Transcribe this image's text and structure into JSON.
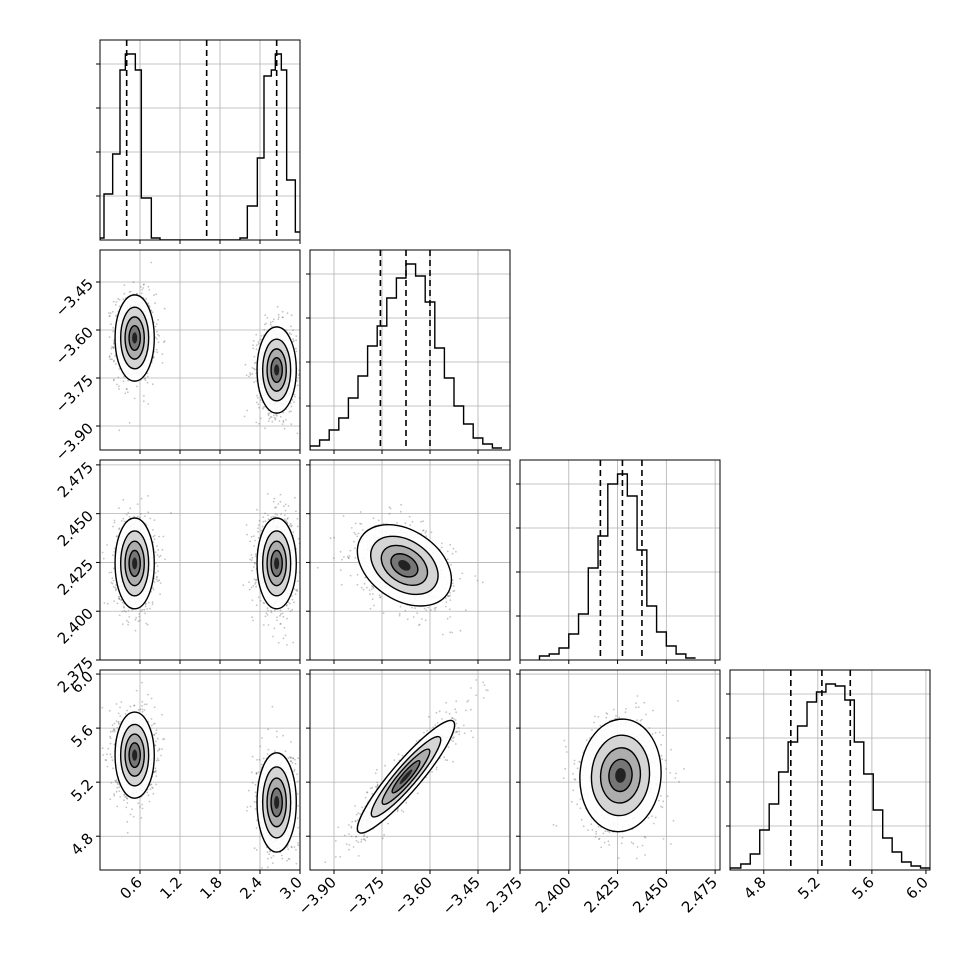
{
  "chart_data": {
    "type": "corner",
    "grid": true,
    "parameters": [
      {
        "range": [
          0.0,
          3.0
        ],
        "ticks": [
          0.6,
          1.2,
          1.8,
          2.4,
          3.0
        ],
        "tick_labels": [
          "0.6",
          "1.2",
          "1.8",
          "2.4",
          "3.0"
        ]
      },
      {
        "range": [
          -3.975,
          -3.35
        ],
        "ticks": [
          -3.9,
          -3.75,
          -3.6,
          -3.45
        ],
        "tick_labels": [
          "−3.90",
          "−3.75",
          "−3.60",
          "−3.45"
        ]
      },
      {
        "range": [
          2.375,
          2.4775
        ],
        "ticks": [
          2.375,
          2.4,
          2.425,
          2.45,
          2.475
        ],
        "tick_labels": [
          "2.375",
          "2.400",
          "2.425",
          "2.450",
          "2.475"
        ]
      },
      {
        "range": [
          4.55,
          6.03
        ],
        "ticks": [
          4.8,
          5.2,
          5.6,
          6.0
        ],
        "tick_labels": [
          "4.8",
          "5.2",
          "5.6",
          "6.0"
        ]
      }
    ],
    "histograms": [
      {
        "quantiles": [
          0.4,
          1.6,
          2.65
        ],
        "bins": [
          [
            0.0,
            0.06,
            0.01
          ],
          [
            0.06,
            0.19,
            0.23
          ],
          [
            0.19,
            0.3,
            0.43
          ],
          [
            0.3,
            0.38,
            0.85
          ],
          [
            0.38,
            0.53,
            0.93
          ],
          [
            0.53,
            0.62,
            0.85
          ],
          [
            0.62,
            0.77,
            0.21
          ],
          [
            0.77,
            0.9,
            0.01
          ],
          [
            0.9,
            2.1,
            0.0
          ],
          [
            2.1,
            2.21,
            0.01
          ],
          [
            2.21,
            2.36,
            0.17
          ],
          [
            2.36,
            2.46,
            0.41
          ],
          [
            2.46,
            2.57,
            0.82
          ],
          [
            2.57,
            2.63,
            0.85
          ],
          [
            2.63,
            2.72,
            0.93
          ],
          [
            2.72,
            2.8,
            0.85
          ],
          [
            2.8,
            2.93,
            0.3
          ],
          [
            2.93,
            3.0,
            0.04
          ]
        ]
      },
      {
        "quantiles": [
          -3.755,
          -3.675,
          -3.6
        ],
        "bins": [
          [
            -3.975,
            -3.945,
            0.02
          ],
          [
            -3.945,
            -3.915,
            0.05
          ],
          [
            -3.915,
            -3.885,
            0.1
          ],
          [
            -3.885,
            -3.855,
            0.16
          ],
          [
            -3.855,
            -3.825,
            0.26
          ],
          [
            -3.825,
            -3.795,
            0.37
          ],
          [
            -3.795,
            -3.765,
            0.52
          ],
          [
            -3.765,
            -3.735,
            0.62
          ],
          [
            -3.735,
            -3.705,
            0.76
          ],
          [
            -3.705,
            -3.675,
            0.86
          ],
          [
            -3.675,
            -3.645,
            0.93
          ],
          [
            -3.645,
            -3.615,
            0.87
          ],
          [
            -3.615,
            -3.585,
            0.74
          ],
          [
            -3.585,
            -3.555,
            0.51
          ],
          [
            -3.555,
            -3.525,
            0.36
          ],
          [
            -3.525,
            -3.495,
            0.22
          ],
          [
            -3.495,
            -3.465,
            0.13
          ],
          [
            -3.465,
            -3.435,
            0.06
          ],
          [
            -3.435,
            -3.405,
            0.03
          ],
          [
            -3.405,
            -3.375,
            0.01
          ]
        ]
      },
      {
        "quantiles": [
          2.4162,
          2.4275,
          2.4375
        ],
        "bins": [
          [
            2.385,
            2.39,
            0.02
          ],
          [
            2.39,
            2.395,
            0.03
          ],
          [
            2.395,
            2.4,
            0.06
          ],
          [
            2.4,
            2.405,
            0.13
          ],
          [
            2.405,
            2.41,
            0.23
          ],
          [
            2.41,
            2.415,
            0.46
          ],
          [
            2.415,
            2.42,
            0.62
          ],
          [
            2.42,
            2.425,
            0.88
          ],
          [
            2.425,
            2.43,
            0.93
          ],
          [
            2.43,
            2.435,
            0.82
          ],
          [
            2.435,
            2.44,
            0.55
          ],
          [
            2.44,
            2.445,
            0.27
          ],
          [
            2.445,
            2.45,
            0.14
          ],
          [
            2.45,
            2.455,
            0.07
          ],
          [
            2.455,
            2.46,
            0.03
          ],
          [
            2.46,
            2.465,
            0.01
          ]
        ]
      },
      {
        "quantiles": [
          5.0,
          5.23,
          5.44
        ],
        "bins": [
          [
            4.55,
            4.63,
            0.01
          ],
          [
            4.63,
            4.7,
            0.03
          ],
          [
            4.7,
            4.77,
            0.08
          ],
          [
            4.77,
            4.84,
            0.2
          ],
          [
            4.84,
            4.91,
            0.33
          ],
          [
            4.91,
            4.98,
            0.49
          ],
          [
            4.98,
            5.05,
            0.64
          ],
          [
            5.05,
            5.12,
            0.72
          ],
          [
            5.12,
            5.19,
            0.84
          ],
          [
            5.19,
            5.26,
            0.89
          ],
          [
            5.26,
            5.33,
            0.93
          ],
          [
            5.33,
            5.4,
            0.92
          ],
          [
            5.4,
            5.47,
            0.85
          ],
          [
            5.47,
            5.54,
            0.64
          ],
          [
            5.54,
            5.61,
            0.48
          ],
          [
            5.61,
            5.68,
            0.3
          ],
          [
            5.68,
            5.75,
            0.16
          ],
          [
            5.75,
            5.82,
            0.09
          ],
          [
            5.82,
            5.89,
            0.04
          ],
          [
            5.89,
            5.96,
            0.02
          ],
          [
            5.96,
            6.03,
            0.01
          ]
        ]
      }
    ],
    "pairs": [
      {
        "row": 1,
        "col": 0,
        "clusters": [
          {
            "x": 0.52,
            "y": -3.625,
            "sx": 0.12,
            "sy": 0.055,
            "rho": 0.0
          },
          {
            "x": 2.65,
            "y": -3.725,
            "sx": 0.12,
            "sy": 0.055,
            "rho": 0.0
          }
        ]
      },
      {
        "row": 2,
        "col": 0,
        "clusters": [
          {
            "x": 0.52,
            "y": 2.4245,
            "sx": 0.12,
            "sy": 0.0095,
            "rho": 0.0
          },
          {
            "x": 2.65,
            "y": 2.4245,
            "sx": 0.12,
            "sy": 0.0095,
            "rho": 0.0
          }
        ]
      },
      {
        "row": 3,
        "col": 0,
        "clusters": [
          {
            "x": 0.52,
            "y": 5.4,
            "sx": 0.12,
            "sy": 0.13,
            "rho": 0.0
          },
          {
            "x": 2.65,
            "y": 5.05,
            "sx": 0.12,
            "sy": 0.15,
            "rho": 0.0
          }
        ]
      },
      {
        "row": 2,
        "col": 1,
        "clusters": [
          {
            "x": -3.68,
            "y": 2.4235,
            "sx": 0.06,
            "sy": 0.0085,
            "rho": -0.35
          }
        ]
      },
      {
        "row": 3,
        "col": 1,
        "clusters": [
          {
            "x": -3.675,
            "y": 5.24,
            "sx": 0.062,
            "sy": 0.17,
            "rho": 0.92
          }
        ]
      },
      {
        "row": 3,
        "col": 2,
        "clusters": [
          {
            "x": 2.4265,
            "y": 5.25,
            "sx": 0.0085,
            "sy": 0.17,
            "rho": 0.05
          }
        ]
      }
    ]
  }
}
